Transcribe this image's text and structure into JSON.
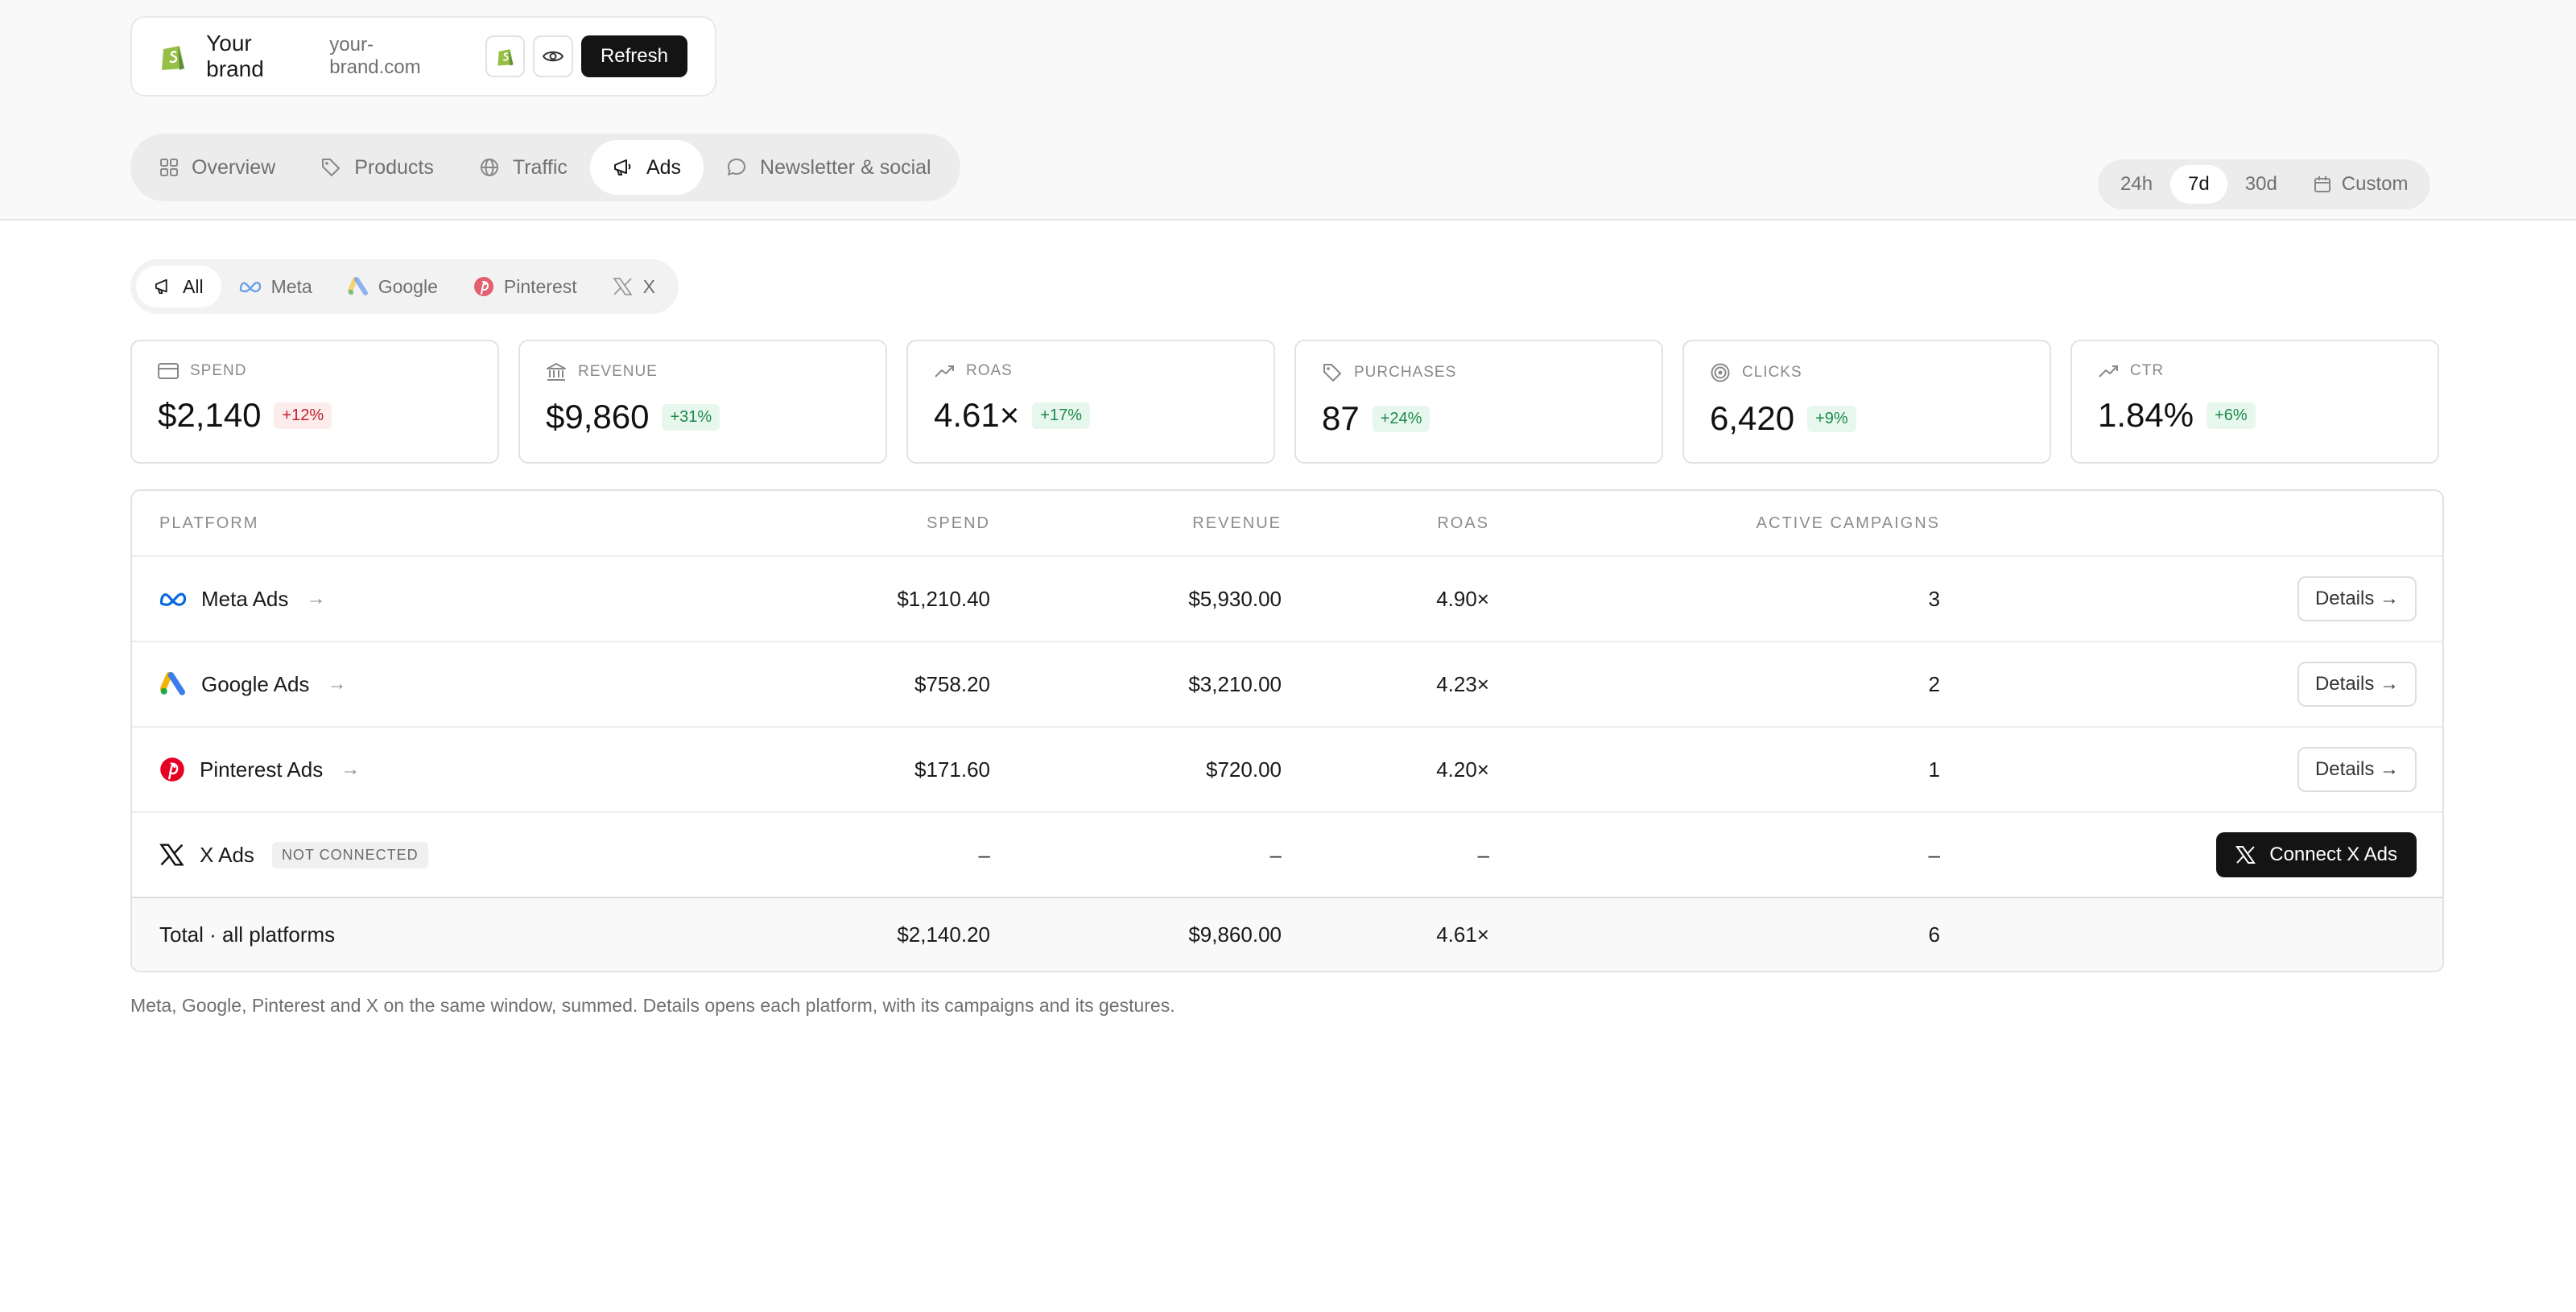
{
  "brand": {
    "name": "Your brand",
    "url": "your-brand.com",
    "refresh_label": "Refresh"
  },
  "nav": {
    "tabs": [
      {
        "label": "Overview",
        "icon": "grid-icon",
        "active": false
      },
      {
        "label": "Products",
        "icon": "tag-icon",
        "active": false
      },
      {
        "label": "Traffic",
        "icon": "globe-icon",
        "active": false
      },
      {
        "label": "Ads",
        "icon": "megaphone-icon",
        "active": true
      },
      {
        "label": "Newsletter & social",
        "icon": "chat-bubble-icon",
        "active": false
      }
    ]
  },
  "range": {
    "options": [
      "24h",
      "7d",
      "30d"
    ],
    "selected": "7d",
    "custom_label": "Custom"
  },
  "platform_filter": {
    "items": [
      {
        "label": "All",
        "active": true
      },
      {
        "label": "Meta",
        "active": false
      },
      {
        "label": "Google",
        "active": false
      },
      {
        "label": "Pinterest",
        "active": false
      },
      {
        "label": "X",
        "active": false
      }
    ]
  },
  "stats": [
    {
      "label": "SPEND",
      "value": "$2,140",
      "change": "+12%",
      "trend": "negative",
      "icon": "credit-card-icon"
    },
    {
      "label": "REVENUE",
      "value": "$9,860",
      "change": "+31%",
      "trend": "positive",
      "icon": "bank-icon"
    },
    {
      "label": "ROAS",
      "value": "4.61×",
      "change": "+17%",
      "trend": "positive",
      "icon": "trending-up-icon"
    },
    {
      "label": "PURCHASES",
      "value": "87",
      "change": "+24%",
      "trend": "positive",
      "icon": "tag-icon"
    },
    {
      "label": "CLICKS",
      "value": "6,420",
      "change": "+9%",
      "trend": "positive",
      "icon": "target-icon"
    },
    {
      "label": "CTR",
      "value": "1.84%",
      "change": "+6%",
      "trend": "positive",
      "icon": "trending-up-icon"
    }
  ],
  "table": {
    "headers": {
      "platform": "PLATFORM",
      "spend": "SPEND",
      "revenue": "REVENUE",
      "roas": "ROAS",
      "campaigns": "ACTIVE CAMPAIGNS"
    },
    "rows": [
      {
        "platform": "Meta Ads",
        "spend": "$1,210.40",
        "revenue": "$5,930.00",
        "roas": "4.90×",
        "campaigns": "3",
        "action": "Details →"
      },
      {
        "platform": "Google Ads",
        "spend": "$758.20",
        "revenue": "$3,210.00",
        "roas": "4.23×",
        "campaigns": "2",
        "action": "Details →"
      },
      {
        "platform": "Pinterest Ads",
        "spend": "$171.60",
        "revenue": "$720.00",
        "roas": "4.20×",
        "campaigns": "1",
        "action": "Details →"
      },
      {
        "platform": "X Ads",
        "status": "NOT CONNECTED",
        "spend": "–",
        "revenue": "–",
        "roas": "–",
        "campaigns": "–",
        "action": "Connect X Ads"
      }
    ],
    "total": {
      "label": "Total · all platforms",
      "spend": "$2,140.20",
      "revenue": "$9,860.00",
      "roas": "4.61×",
      "campaigns": "6"
    }
  },
  "footnote": "Meta, Google, Pinterest and X on the same window, summed. Details opens each platform, with its campaigns and its gestures.",
  "colors": {
    "accent_dark": "#141414",
    "positive": "#1b8a4a",
    "negative": "#c0202a",
    "shopify_green": "#95bf47",
    "meta_blue": "#0668e1",
    "pinterest_red": "#e60023"
  }
}
